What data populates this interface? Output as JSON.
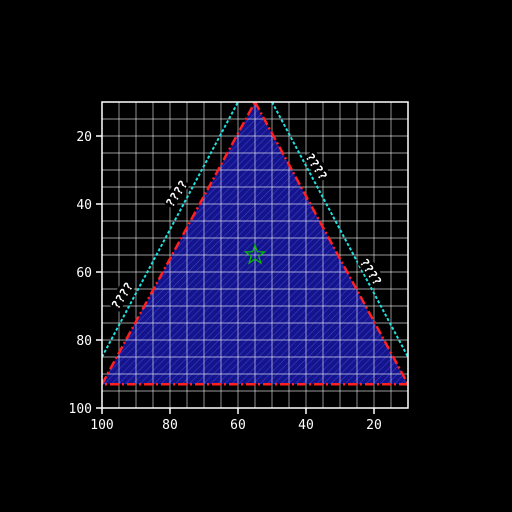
{
  "chart_data": {
    "type": "area",
    "title": "",
    "xlabel": "",
    "ylabel": "",
    "xlim": [
      100,
      10
    ],
    "ylim": [
      100,
      10
    ],
    "x_ticks": [
      100,
      80,
      60,
      40,
      20
    ],
    "y_ticks": [
      20,
      40,
      60,
      80,
      100
    ],
    "grid": true,
    "colors": {
      "background": "#000000",
      "axes": "#ffffff",
      "grid": "#ffffff",
      "fill": "#14148c",
      "hatch": "#3c3cc8",
      "triangle": "#ff2020",
      "offset_line": "#20e0e0",
      "marker": "#00c000"
    },
    "triangle": [
      [
        100,
        93
      ],
      [
        55,
        10
      ],
      [
        10,
        93
      ]
    ],
    "offset_left": [
      [
        100,
        85
      ],
      [
        60,
        10
      ]
    ],
    "offset_right": [
      [
        50,
        10
      ],
      [
        10,
        85
      ]
    ],
    "contour_labels": [
      {
        "text": "????",
        "x": 78,
        "y": 37,
        "angle": -57
      },
      {
        "text": "????",
        "x": 94,
        "y": 67,
        "angle": -57
      },
      {
        "text": "????",
        "x": 37,
        "y": 29,
        "angle": 57
      },
      {
        "text": "????",
        "x": 21,
        "y": 60,
        "angle": 57
      }
    ],
    "marker": {
      "shape": "star",
      "x": 55,
      "y": 55
    }
  }
}
